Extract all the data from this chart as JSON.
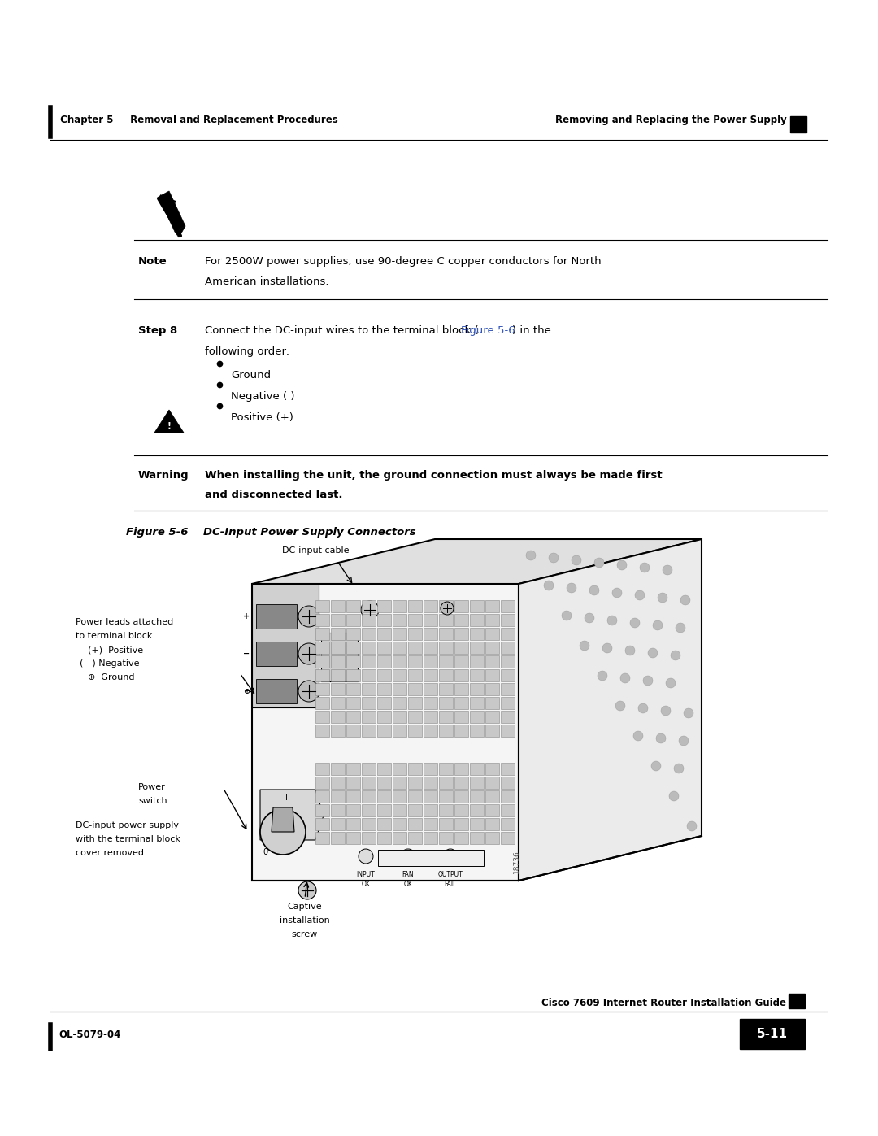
{
  "page_width": 10.8,
  "page_height": 13.97,
  "bg_color": "#ffffff",
  "header_left_bar": "| ",
  "header_left_text": " Chapter 5     Removal and Replacement Procedures",
  "header_right_text": "Removing and Replacing the Power Supply",
  "note_text_line1": "For 2500W power supplies, use 90-degree C copper conductors for North",
  "note_text_line2": "American installations.",
  "step8_label": "Step 8",
  "step8_part1": "Connect the DC-input wires to the terminal block (",
  "step8_link": "Figure 5-6",
  "step8_part2": ") in the",
  "step8_line2": "following order:",
  "bullets": [
    "Ground",
    "Negative ( )",
    "Positive (+)"
  ],
  "warning_label": "Warning",
  "warning_line1": "When installing the unit, the ground connection must always be made first",
  "warning_line2": "and disconnected last.",
  "figure_caption": "Figure 5-6    DC-Input Power Supply Connectors",
  "callout_cable": "DC-input cable",
  "callout_leads_line1": "Power leads attached",
  "callout_leads_line2": "to terminal block",
  "callout_leads_line3": "(+)  Positive",
  "callout_leads_line4": "( - ) Negative",
  "callout_leads_line5": "⊕  Ground",
  "callout_power_line1": "Power",
  "callout_power_line2": "switch",
  "callout_dc_line1": "DC-input power supply",
  "callout_dc_line2": "with the terminal block",
  "callout_dc_line3": "cover removed",
  "callout_captive_line1": "Captive",
  "callout_captive_line2": "installation",
  "callout_captive_line3": "screw",
  "watermark": "18736",
  "footer_guide": "Cisco 7609 Internet Router Installation Guide",
  "footer_left": "OL-5079-04",
  "footer_right": "5-11"
}
